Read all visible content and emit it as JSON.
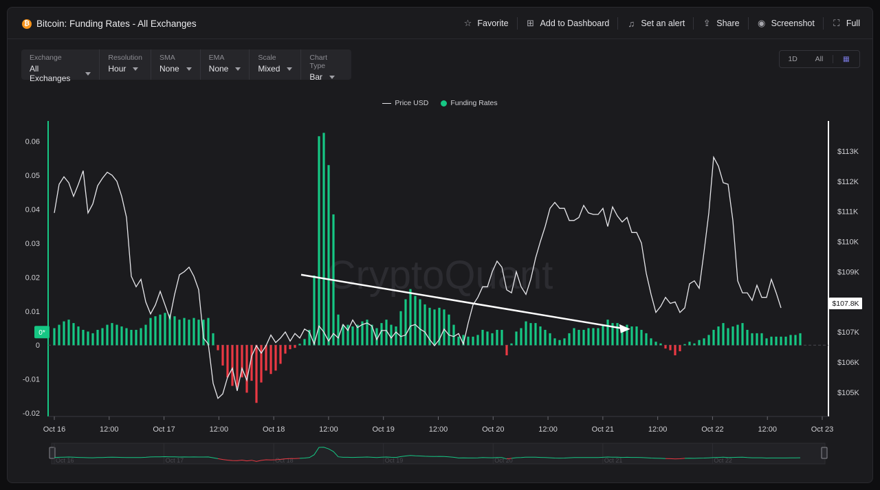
{
  "header": {
    "title": "Bitcoin: Funding Rates - All Exchanges",
    "coin_symbol": "₿",
    "actions": [
      {
        "label": "Favorite",
        "icon": "star-icon"
      },
      {
        "label": "Add to Dashboard",
        "icon": "dashboard-add-icon"
      },
      {
        "label": "Set an alert",
        "icon": "bell-icon"
      },
      {
        "label": "Share",
        "icon": "share-icon"
      },
      {
        "label": "Screenshot",
        "icon": "camera-icon"
      },
      {
        "label": "Full",
        "icon": "fullscreen-icon"
      }
    ]
  },
  "controls": [
    {
      "label": "Exchange",
      "value": "All Exchanges"
    },
    {
      "label": "Resolution",
      "value": "Hour"
    },
    {
      "label": "SMA",
      "value": "None"
    },
    {
      "label": "EMA",
      "value": "None"
    },
    {
      "label": "Scale",
      "value": "Mixed"
    },
    {
      "label": "Chart Type",
      "value": "Bar"
    }
  ],
  "range": {
    "d1": "1D",
    "all": "All",
    "calendar_icon": "calendar-icon"
  },
  "legend": {
    "price": "Price USD",
    "funding": "Funding Rates"
  },
  "watermark": "CryptoQuant",
  "colors": {
    "positive": "#16c784",
    "negative": "#ea3943",
    "price": "#e8e8ec",
    "accent": "#f7931a"
  },
  "chart_data": {
    "type": "bar",
    "y_left": {
      "ticks": [
        0.06,
        0.05,
        0.04,
        0.03,
        0.02,
        0.01,
        0,
        -0.01,
        -0.02
      ],
      "tick_labels": [
        "0.06",
        "0.05",
        "0.04",
        "0.03",
        "0.02",
        "0.01",
        "0",
        "-0.01",
        "-0.02"
      ],
      "range": [
        -0.021,
        0.066
      ]
    },
    "y_right": {
      "ticks": [
        113000,
        112000,
        111000,
        110000,
        109000,
        108000,
        107000,
        106000,
        105000
      ],
      "tick_labels": [
        "$113K",
        "$112K",
        "$111K",
        "$110K",
        "$109K",
        "$108K",
        "$107K",
        "$106K",
        "$105K"
      ],
      "range": [
        104200,
        114000
      ]
    },
    "x_labels": [
      "Oct 16",
      "12:00",
      "Oct 17",
      "12:00",
      "Oct 18",
      "12:00",
      "Oct 19",
      "12:00",
      "Oct 20",
      "12:00",
      "Oct 21",
      "12:00",
      "Oct 22",
      "12:00",
      "Oct 23"
    ],
    "zero_badge": "0*",
    "last_price_label": "$107.8K",
    "navigator_labels": [
      "Oct 16",
      "Oct 17",
      "Oct 18",
      "Oct 19",
      "Oct 20",
      "Oct 21",
      "Oct 22"
    ],
    "series": [
      {
        "name": "Funding Rates",
        "unit": "hours from Oct 16 00:00",
        "values": [
          0.005,
          0.006,
          0.007,
          0.0075,
          0.0065,
          0.0055,
          0.0045,
          0.004,
          0.0035,
          0.0045,
          0.005,
          0.006,
          0.0065,
          0.006,
          0.0055,
          0.005,
          0.0045,
          0.0045,
          0.005,
          0.006,
          0.008,
          0.0085,
          0.009,
          0.0095,
          0.009,
          0.0085,
          0.0075,
          0.008,
          0.0075,
          0.008,
          0.0075,
          0.0075,
          0.008,
          0.0035,
          -0.0015,
          -0.006,
          -0.0095,
          -0.012,
          -0.0125,
          -0.0095,
          -0.014,
          -0.0105,
          -0.017,
          -0.011,
          -0.0075,
          -0.0085,
          -0.0075,
          -0.0055,
          -0.0025,
          -0.0012,
          -0.0008,
          0.0004,
          0.0018,
          0.0045,
          0.0205,
          0.0615,
          0.0625,
          0.053,
          0.0385,
          0.009,
          0.006,
          0.006,
          0.0055,
          0.006,
          0.007,
          0.0075,
          0.006,
          0.005,
          0.0065,
          0.0075,
          0.006,
          0.0055,
          0.01,
          0.0135,
          0.0165,
          0.0145,
          0.0135,
          0.012,
          0.011,
          0.0105,
          0.011,
          0.0105,
          0.009,
          0.006,
          0.0025,
          0.003,
          0.0025,
          0.0025,
          0.003,
          0.0045,
          0.004,
          0.0035,
          0.0045,
          0.0045,
          -0.003,
          0.0005,
          0.004,
          0.005,
          0.007,
          0.0065,
          0.0065,
          0.0055,
          0.0045,
          0.0035,
          0.002,
          0.0015,
          0.002,
          0.0035,
          0.005,
          0.0045,
          0.0045,
          0.005,
          0.005,
          0.005,
          0.006,
          0.0075,
          0.0065,
          0.0065,
          0.0055,
          0.006,
          0.0055,
          0.0055,
          0.0045,
          0.0035,
          0.002,
          0.001,
          0.0005,
          -0.001,
          -0.0015,
          -0.003,
          -0.0018,
          0.0003,
          0.001,
          0.0005,
          0.0015,
          0.002,
          0.003,
          0.0045,
          0.0055,
          0.0065,
          0.005,
          0.0055,
          0.006,
          0.0065,
          0.0045,
          0.0035,
          0.0035,
          0.0035,
          0.002,
          0.0025,
          0.0025,
          0.0025,
          0.0025,
          0.003,
          0.003,
          0.0035
        ]
      },
      {
        "name": "Price USD",
        "unit": "USD",
        "values": [
          110950,
          111900,
          112150,
          111950,
          111500,
          111900,
          112350,
          110950,
          111250,
          111850,
          112100,
          112300,
          112200,
          112000,
          111500,
          110800,
          108850,
          108500,
          108750,
          108000,
          107600,
          107900,
          108350,
          107900,
          107450,
          108250,
          108900,
          109000,
          109150,
          108850,
          108400,
          106800,
          106600,
          105300,
          104800,
          104950,
          105500,
          105800,
          105050,
          105800,
          105400,
          106200,
          106550,
          106300,
          106550,
          106900,
          106650,
          106800,
          107000,
          106700,
          106950,
          106800,
          107100,
          107000,
          106600,
          107200,
          107000,
          106700,
          106950,
          106800,
          107250,
          107050,
          107400,
          107150,
          107250,
          107300,
          107200,
          106750,
          107050,
          107050,
          106800,
          107000,
          106850,
          106900,
          107200,
          107250,
          107100,
          107000,
          106750,
          106550,
          106750,
          107100,
          106900,
          106850,
          106950,
          106600,
          107300,
          107900,
          108150,
          108500,
          108500,
          109000,
          109350,
          109150,
          108400,
          108300,
          109000,
          108500,
          108250,
          108750,
          109450,
          110000,
          110500,
          111100,
          111300,
          111100,
          111100,
          110700,
          110700,
          110800,
          111200,
          110950,
          110900,
          110900,
          111100,
          110500,
          111150,
          110850,
          110650,
          110800,
          110300,
          110300,
          109950,
          108950,
          108250,
          107650,
          107850,
          108150,
          107950,
          108000,
          107650,
          107800,
          108600,
          108700,
          108450,
          109650,
          110950,
          112800,
          112500,
          111950,
          111900,
          110700,
          108700,
          108300,
          108300,
          108050,
          108550,
          108150,
          108150,
          108750,
          108300,
          107800
        ]
      }
    ],
    "trend_arrow": {
      "from": {
        "hour": 54,
        "price": 108900
      },
      "to": {
        "hour": 126,
        "price": 107100
      }
    }
  }
}
